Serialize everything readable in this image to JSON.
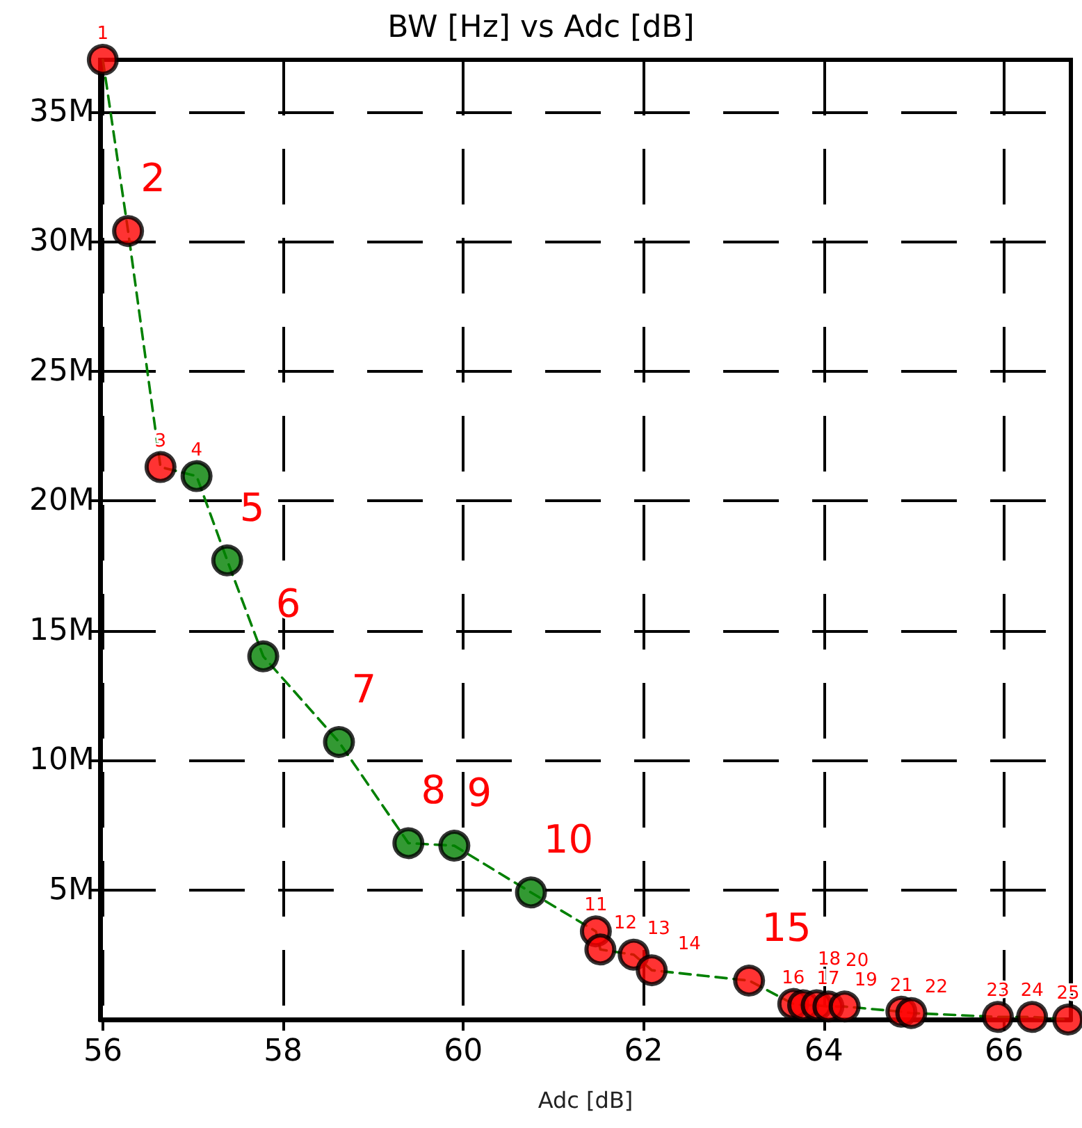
{
  "chart_data": {
    "type": "scatter",
    "title": "BW [Hz] vs Adc [dB]",
    "xlabel": "Adc [dB]",
    "xlim": [
      55.97,
      66.74
    ],
    "xticks": [
      56,
      58,
      60,
      62,
      64,
      66
    ],
    "ylim": [
      0,
      37000000
    ],
    "yticks": [
      {
        "value": 5000000,
        "label": "5M"
      },
      {
        "value": 10000000,
        "label": "10M"
      },
      {
        "value": 15000000,
        "label": "15M"
      },
      {
        "value": 20000000,
        "label": "20M"
      },
      {
        "value": 25000000,
        "label": "25M"
      },
      {
        "value": 30000000,
        "label": "30M"
      },
      {
        "value": 35000000,
        "label": "35M"
      }
    ],
    "grid": true,
    "marker": "circle",
    "series": [
      {
        "type": "line",
        "color": "#008000",
        "line_style": "dashed",
        "marker": "none",
        "x": [
          56.0,
          56.28,
          56.64,
          57.04,
          57.38,
          57.78,
          58.62,
          59.39,
          59.9,
          60.75,
          61.47,
          61.52,
          61.89,
          62.09,
          63.17,
          63.66,
          63.77,
          63.92,
          64.05,
          64.23,
          64.86,
          64.97,
          65.93,
          66.31,
          66.71
        ],
        "values": [
          37000000,
          30400000,
          21300000,
          20950000,
          17700000,
          14000000,
          10700000,
          6800000,
          6700000,
          4900000,
          3400000,
          2700000,
          2500000,
          1900000,
          1500000,
          600000,
          550000,
          550000,
          500000,
          500000,
          300000,
          250000,
          100000,
          100000,
          0
        ]
      },
      {
        "type": "scatter",
        "x": [
          56.0,
          56.28,
          56.64,
          57.04,
          57.38,
          57.78,
          58.62,
          59.39,
          59.9,
          60.75,
          61.47,
          61.52,
          61.89,
          62.09,
          63.17,
          63.66,
          63.77,
          63.92,
          64.05,
          64.23,
          64.86,
          64.97,
          65.93,
          66.31,
          66.71
        ],
        "values": [
          37000000,
          30400000,
          21300000,
          20950000,
          17700000,
          14000000,
          10700000,
          6800000,
          6700000,
          4900000,
          3400000,
          2700000,
          2500000,
          1900000,
          1500000,
          600000,
          550000,
          550000,
          500000,
          500000,
          300000,
          250000,
          100000,
          100000,
          0
        ],
        "colors": [
          "#ff0000",
          "#ff0000",
          "#ff0000",
          "#008000",
          "#008000",
          "#008000",
          "#008000",
          "#008000",
          "#008000",
          "#008000",
          "#ff0000",
          "#ff0000",
          "#ff0000",
          "#ff0000",
          "#ff0000",
          "#ff0000",
          "#ff0000",
          "#ff0000",
          "#ff0000",
          "#ff0000",
          "#ff0000",
          "#ff0000",
          "#ff0000",
          "#ff0000",
          "#ff0000"
        ]
      }
    ],
    "annotations": [
      {
        "text": "1",
        "x": 56.0,
        "y": 37000000
      },
      {
        "text": "2",
        "x": 56.28,
        "y": 30400000
      },
      {
        "text": "3",
        "x": 56.64,
        "y": 21300000
      },
      {
        "text": "4",
        "x": 57.04,
        "y": 20950000
      },
      {
        "text": "5",
        "x": 57.38,
        "y": 17700000
      },
      {
        "text": "6",
        "x": 57.78,
        "y": 14000000
      },
      {
        "text": "7",
        "x": 58.62,
        "y": 10700000
      },
      {
        "text": "8",
        "x": 59.39,
        "y": 6800000
      },
      {
        "text": "9",
        "x": 59.9,
        "y": 6700000
      },
      {
        "text": "10",
        "x": 60.75,
        "y": 4900000
      },
      {
        "text": "11",
        "x": 61.47,
        "y": 3400000
      },
      {
        "text": "12",
        "x": 61.52,
        "y": 2700000
      },
      {
        "text": "13",
        "x": 61.89,
        "y": 2500000
      },
      {
        "text": "14",
        "x": 62.09,
        "y": 1900000
      },
      {
        "text": "15",
        "x": 63.17,
        "y": 1500000
      },
      {
        "text": "16",
        "x": 63.66,
        "y": 600000
      },
      {
        "text": "17",
        "x": 63.77,
        "y": 550000
      },
      {
        "text": "18",
        "x": 63.92,
        "y": 550000
      },
      {
        "text": "19",
        "x": 64.05,
        "y": 500000
      },
      {
        "text": "20",
        "x": 64.23,
        "y": 500000
      },
      {
        "text": "21",
        "x": 64.86,
        "y": 300000
      },
      {
        "text": "22",
        "x": 64.97,
        "y": 250000
      },
      {
        "text": "23",
        "x": 65.93,
        "y": 100000
      },
      {
        "text": "24",
        "x": 66.31,
        "y": 100000
      },
      {
        "text": "25",
        "x": 66.71,
        "y": 0
      }
    ]
  }
}
